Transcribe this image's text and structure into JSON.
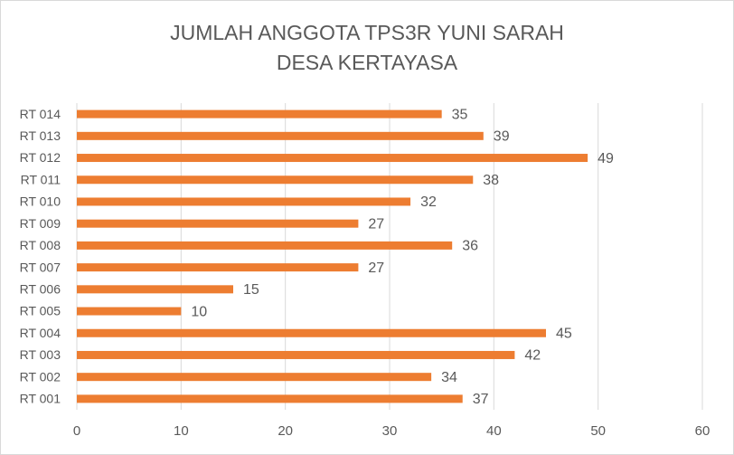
{
  "chart_data": {
    "type": "bar",
    "orientation": "horizontal",
    "title": [
      "JUMLAH ANGGOTA  TPS3R YUNI SARAH",
      "DESA KERTAYASA"
    ],
    "categories": [
      "RT 001",
      "RT 002",
      "RT 003",
      "RT 004",
      "RT 005",
      "RT 006",
      "RT 007",
      "RT 008",
      "RT 009",
      "RT 010",
      "RT 011",
      "RT 012",
      "RT 013",
      "RT 014"
    ],
    "values": [
      37,
      34,
      42,
      45,
      10,
      15,
      27,
      36,
      27,
      32,
      38,
      49,
      39,
      35
    ],
    "color": "#ed7d31",
    "xlim": [
      0,
      60
    ],
    "xticks": [
      0,
      10,
      20,
      30,
      40,
      50,
      60
    ],
    "grid": true
  }
}
